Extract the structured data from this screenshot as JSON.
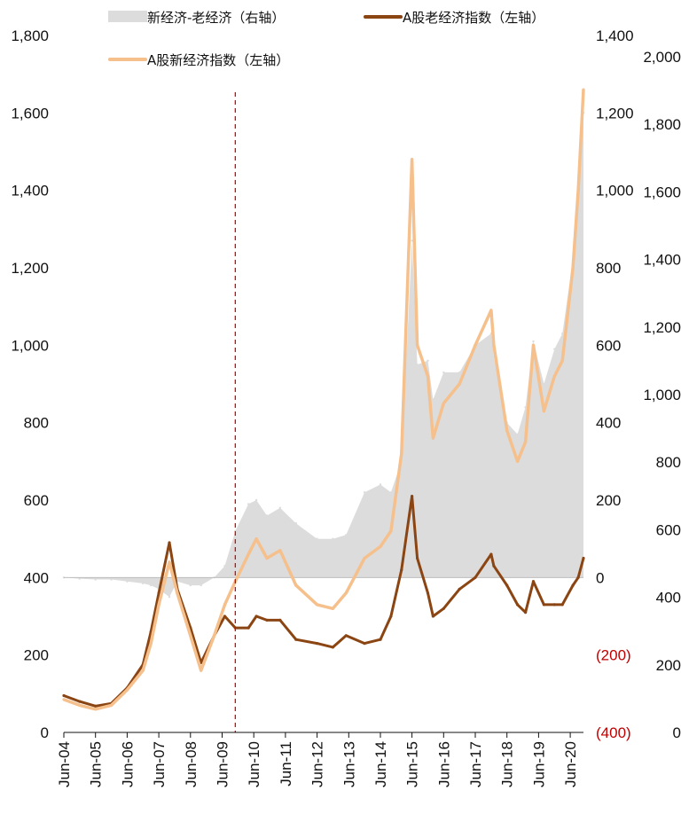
{
  "chart_data": {
    "type": "line",
    "legend": {
      "placement": "top",
      "entries": [
        {
          "label": "新经济-老经济（右轴）",
          "color": "#dcdcdc",
          "kind": "area"
        },
        {
          "label": "A股老经济指数（左轴）",
          "color": "#8b4513",
          "kind": "line"
        },
        {
          "label": "A股新经济指数（左轴）",
          "color": "#f5c08c",
          "kind": "line"
        }
      ]
    },
    "left_axis": {
      "ticks": [
        "0",
        "200",
        "400",
        "600",
        "800",
        "1,000",
        "1,200",
        "1,400",
        "1,600",
        "1,800"
      ],
      "ylim": [
        0,
        1800
      ]
    },
    "right_axis": {
      "ticks": [
        "(400)",
        "(200)",
        "0",
        "200",
        "400",
        "600",
        "800",
        "1,000",
        "1,200",
        "1,400"
      ],
      "ylim": [
        -400,
        1400
      ],
      "negative_color": "#c00000"
    },
    "far_right_axis": {
      "ticks": [
        "0",
        "200",
        "400",
        "600",
        "800",
        "1,000",
        "1,200",
        "1,400",
        "1,600",
        "1,800",
        "2,000"
      ],
      "ylim": [
        0,
        2000
      ],
      "clipped": true
    },
    "x_ticks": [
      "Jun-04",
      "Jun-05",
      "Jun-06",
      "Jun-07",
      "Jun-08",
      "Jun-09",
      "Jun-10",
      "Jun-11",
      "Jun-12",
      "Jun-13",
      "Jun-14",
      "Jun-15",
      "Jun-16",
      "Jun-17",
      "Jun-18",
      "Jun-19",
      "Jun-20"
    ],
    "x_range": [
      "2004-06",
      "2020-11"
    ],
    "vline": {
      "x": "2009-11",
      "color": "#e60000",
      "style": "dashed"
    },
    "x": [
      "2004-06",
      "2004-12",
      "2005-06",
      "2005-12",
      "2006-06",
      "2006-12",
      "2007-03",
      "2007-06",
      "2007-10",
      "2008-01",
      "2008-06",
      "2008-10",
      "2009-03",
      "2009-07",
      "2009-11",
      "2010-04",
      "2010-07",
      "2010-11",
      "2011-04",
      "2011-10",
      "2012-06",
      "2012-12",
      "2013-05",
      "2013-12",
      "2014-06",
      "2014-10",
      "2015-02",
      "2015-06",
      "2015-08",
      "2015-12",
      "2016-02",
      "2016-06",
      "2016-12",
      "2017-06",
      "2017-12",
      "2018-01",
      "2018-06",
      "2018-10",
      "2019-01",
      "2019-04",
      "2019-08",
      "2019-12",
      "2020-03",
      "2020-07",
      "2020-09",
      "2020-11"
    ],
    "series": [
      {
        "name": "A股老经济指数（左轴）",
        "axis": "left",
        "color": "#8b4513",
        "values": [
          95,
          80,
          68,
          75,
          115,
          175,
          260,
          360,
          490,
          370,
          270,
          180,
          250,
          300,
          270,
          270,
          300,
          290,
          290,
          240,
          230,
          220,
          250,
          230,
          240,
          300,
          420,
          610,
          450,
          360,
          300,
          320,
          370,
          400,
          460,
          430,
          380,
          330,
          310,
          390,
          330,
          330,
          330,
          380,
          400,
          450
        ]
      },
      {
        "name": "A股新经济指数（左轴）",
        "axis": "left",
        "color": "#f5c08c",
        "values": [
          85,
          70,
          60,
          70,
          110,
          160,
          230,
          330,
          440,
          360,
          250,
          160,
          250,
          330,
          390,
          460,
          500,
          450,
          470,
          380,
          330,
          320,
          360,
          450,
          480,
          520,
          720,
          1480,
          1000,
          920,
          760,
          850,
          900,
          1000,
          1090,
          1000,
          780,
          700,
          750,
          1000,
          830,
          920,
          960,
          1200,
          1400,
          1660
        ]
      },
      {
        "name": "新经济-老经济（右轴）",
        "axis": "right",
        "color": "#dcdcdc",
        "values": [
          0,
          -3,
          -5,
          -5,
          -10,
          -15,
          -20,
          -30,
          -50,
          -10,
          -20,
          -20,
          0,
          30,
          120,
          190,
          200,
          160,
          180,
          140,
          100,
          100,
          110,
          220,
          240,
          220,
          300,
          870,
          550,
          560,
          460,
          530,
          530,
          600,
          630,
          570,
          400,
          370,
          440,
          610,
          500,
          590,
          630,
          820,
          1000,
          1200
        ]
      }
    ]
  }
}
